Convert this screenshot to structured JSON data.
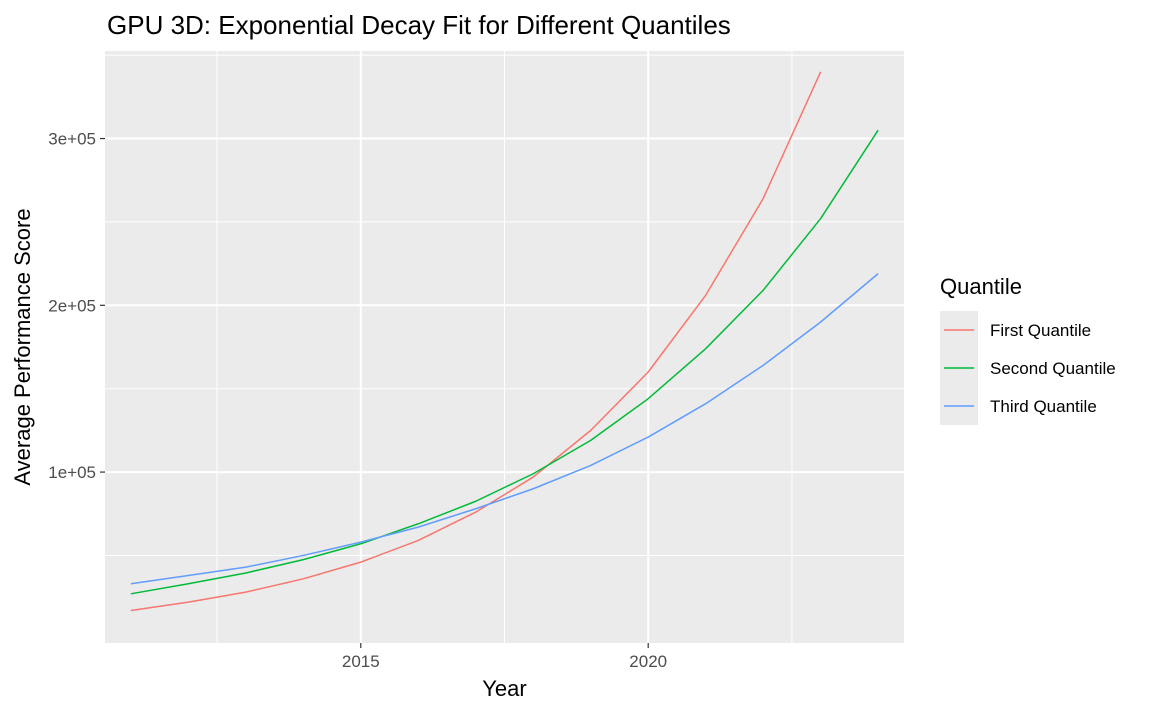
{
  "chart_data": {
    "type": "line",
    "title": "GPU 3D: Exponential Decay Fit for Different Quantiles",
    "xlabel": "Year",
    "ylabel": "Average Performance Score",
    "xlim": [
      2010.55,
      2024.45
    ],
    "ylim": [
      -2500,
      352500
    ],
    "x_ticks": [
      2015,
      2020
    ],
    "x_tick_labels": [
      "2015",
      "2020"
    ],
    "y_ticks": [
      100000,
      200000,
      300000
    ],
    "y_tick_labels": [
      "1e+05",
      "2e+05",
      "3e+05"
    ],
    "grid": true,
    "legend": {
      "title": "Quantile",
      "position": "right"
    },
    "series": [
      {
        "name": "First Quantile",
        "color": "#F8766D",
        "x": [
          2011,
          2012,
          2013,
          2014,
          2015,
          2016,
          2017,
          2018,
          2019,
          2020,
          2021,
          2022,
          2023
        ],
        "values": [
          17000,
          22000,
          28000,
          36000,
          46000,
          59000,
          76000,
          97000,
          125000,
          160000,
          206000,
          264000,
          340000
        ]
      },
      {
        "name": "Second Quantile",
        "color": "#00BA38",
        "x": [
          2011,
          2012,
          2013,
          2014,
          2015,
          2016,
          2017,
          2018,
          2019,
          2020,
          2021,
          2022,
          2023,
          2024
        ],
        "values": [
          27000,
          33000,
          39500,
          47500,
          57000,
          69000,
          82500,
          99000,
          119000,
          144000,
          174000,
          209000,
          252000,
          305000
        ]
      },
      {
        "name": "Third Quantile",
        "color": "#619CFF",
        "x": [
          2011,
          2012,
          2013,
          2014,
          2015,
          2016,
          2017,
          2018,
          2019,
          2020,
          2021,
          2022,
          2023,
          2024
        ],
        "values": [
          33000,
          38000,
          43000,
          50000,
          58000,
          67000,
          78000,
          90000,
          104000,
          121000,
          141000,
          164000,
          190000,
          219000
        ]
      }
    ]
  },
  "colors": {
    "panel_background": "#EBEBEB",
    "grid_major": "#FFFFFF",
    "tick_text": "#4D4D4D",
    "tick_mark": "#333333"
  }
}
